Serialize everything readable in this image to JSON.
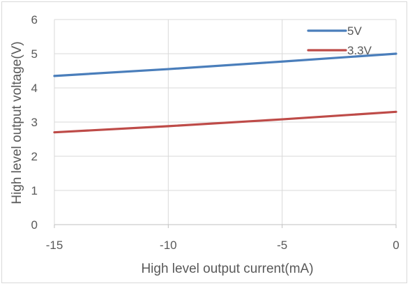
{
  "chart_data": {
    "type": "line",
    "title": "",
    "xlabel": "High level output current(mA)",
    "ylabel": "High level output voltage(V)",
    "xlim": [
      -15,
      0
    ],
    "ylim": [
      0,
      6
    ],
    "x_ticks": [
      "-15",
      "-10",
      "-5",
      "0"
    ],
    "y_ticks": [
      "0",
      "1",
      "2",
      "3",
      "4",
      "5",
      "6"
    ],
    "grid": true,
    "legend_position": "top-right",
    "series": [
      {
        "name": "5V",
        "color": "#4a7ebb",
        "x": [
          -15,
          -10,
          -5,
          0
        ],
        "y": [
          4.35,
          4.55,
          4.77,
          5.0
        ]
      },
      {
        "name": "3.3V",
        "color": "#be4b48",
        "x": [
          -15,
          -10,
          -5,
          0
        ],
        "y": [
          2.7,
          2.88,
          3.08,
          3.3
        ]
      }
    ]
  }
}
